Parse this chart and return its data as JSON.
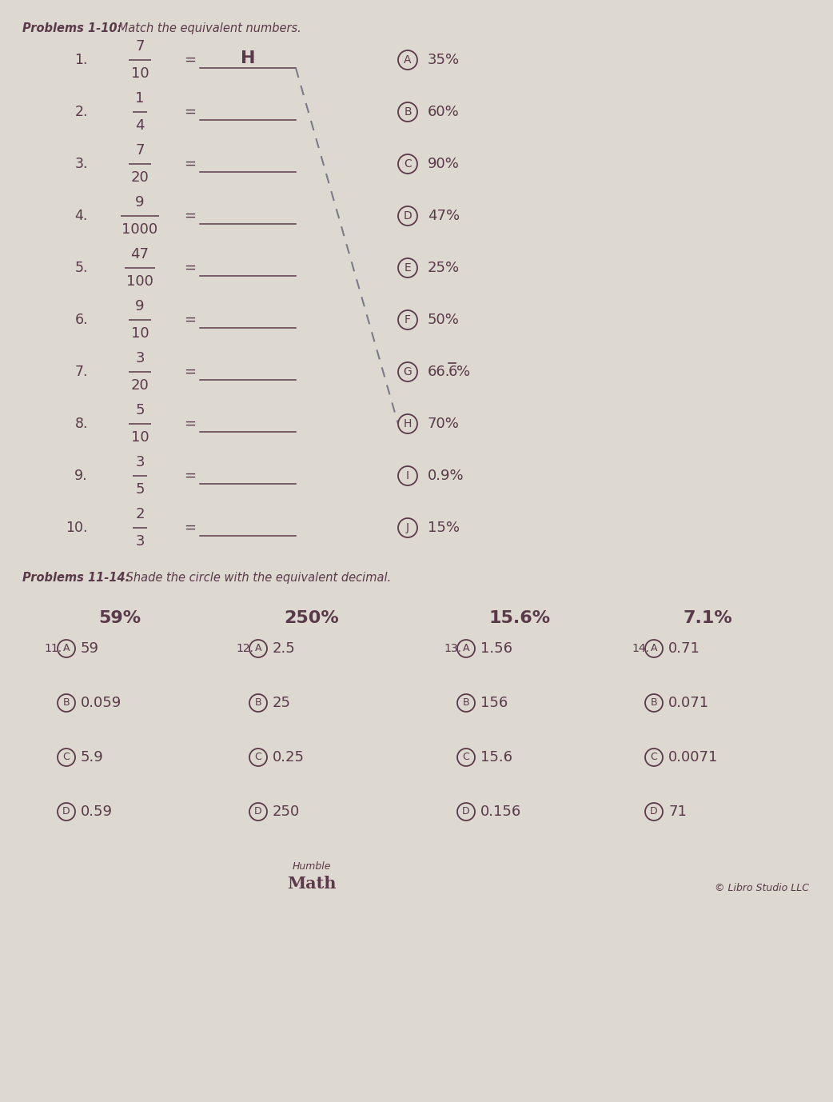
{
  "bg_color": "#ddd8d0",
  "text_color": "#5a3a4a",
  "circle_color": "#5a3a4a",
  "title1_bold": "Problems 1-10:",
  "title1_italic": " Match the equivalent numbers.",
  "title2_bold": "Problems 11-14:",
  "title2_italic": " Shade the circle with the equivalent decimal.",
  "left_problems": [
    {
      "num": "1.",
      "frac_num": "7",
      "frac_den": "10",
      "answer": "H"
    },
    {
      "num": "2.",
      "frac_num": "1",
      "frac_den": "4",
      "answer": ""
    },
    {
      "num": "3.",
      "frac_num": "7",
      "frac_den": "20",
      "answer": ""
    },
    {
      "num": "4.",
      "frac_num": "9",
      "frac_den": "1000",
      "answer": ""
    },
    {
      "num": "5.",
      "frac_num": "47",
      "frac_den": "100",
      "answer": ""
    },
    {
      "num": "6.",
      "frac_num": "9",
      "frac_den": "10",
      "answer": ""
    },
    {
      "num": "7.",
      "frac_num": "3",
      "frac_den": "20",
      "answer": ""
    },
    {
      "num": "8.",
      "frac_num": "5",
      "frac_den": "10",
      "answer": ""
    },
    {
      "num": "9.",
      "frac_num": "3",
      "frac_den": "5",
      "answer": ""
    },
    {
      "num": "10.",
      "frac_num": "2",
      "frac_den": "3",
      "answer": ""
    }
  ],
  "right_options": [
    {
      "letter": "A",
      "text": "35%",
      "overline": false
    },
    {
      "letter": "B",
      "text": "60%",
      "overline": false
    },
    {
      "letter": "C",
      "text": "90%",
      "overline": false
    },
    {
      "letter": "D",
      "text": "47%",
      "overline": false
    },
    {
      "letter": "E",
      "text": "25%",
      "overline": false
    },
    {
      "letter": "F",
      "text": "50%",
      "overline": false
    },
    {
      "letter": "G",
      "text": "66.6%",
      "overline": true,
      "overline_char": "6",
      "prefix": "66.",
      "suffix": "%"
    },
    {
      "letter": "H",
      "text": "70%",
      "overline": false
    },
    {
      "letter": "I",
      "text": "0.9%",
      "overline": false
    },
    {
      "letter": "J",
      "text": "15%",
      "overline": false
    }
  ],
  "problems_11_14": [
    {
      "prob_num": "11.",
      "pct": "59%",
      "options": [
        "59",
        "0.059",
        "5.9",
        "0.59"
      ]
    },
    {
      "prob_num": "12.",
      "pct": "250%",
      "options": [
        "2.5",
        "25",
        "0.25",
        "250"
      ]
    },
    {
      "prob_num": "13.",
      "pct": "15.6%",
      "options": [
        "1.56",
        "156",
        "15.6",
        "0.156"
      ]
    },
    {
      "prob_num": "14.",
      "pct": "7.1%",
      "options": [
        "0.71",
        "0.071",
        "0.0071",
        "71"
      ]
    }
  ],
  "opt_letters": [
    "A",
    "B",
    "C",
    "D"
  ],
  "copyright_text": "© Libro Studio LLC"
}
